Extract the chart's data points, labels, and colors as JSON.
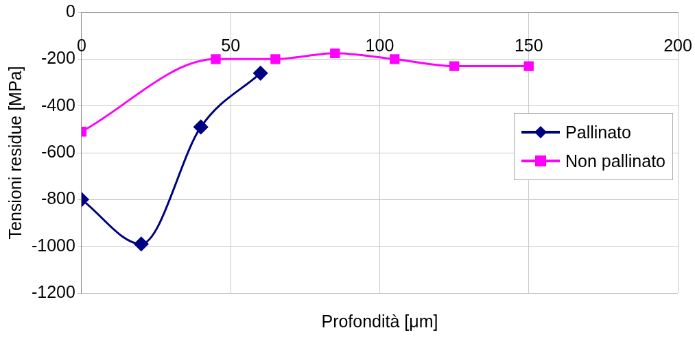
{
  "chart_data": {
    "type": "line",
    "xlabel": "Profondità [μm]",
    "ylabel": "Tensioni residue [MPa]",
    "xlim": [
      0,
      200
    ],
    "xticks": [
      0,
      50,
      100,
      150,
      200
    ],
    "ylim": [
      -1200,
      0
    ],
    "yticks": [
      -1200,
      -1000,
      -800,
      -600,
      -400,
      -200,
      0
    ],
    "series": [
      {
        "name": "Pallinato",
        "color": "#000080",
        "marker": "diamond",
        "x": [
          0,
          20,
          40,
          60
        ],
        "values": [
          -800,
          -990,
          -490,
          -260
        ]
      },
      {
        "name": "Non pallinato",
        "color": "#ff00ff",
        "marker": "square",
        "x": [
          0,
          45,
          65,
          85,
          105,
          125,
          150
        ],
        "values": [
          -510,
          -200,
          -200,
          -175,
          -200,
          -230,
          -230
        ]
      }
    ],
    "grid": true,
    "legend": "right"
  }
}
